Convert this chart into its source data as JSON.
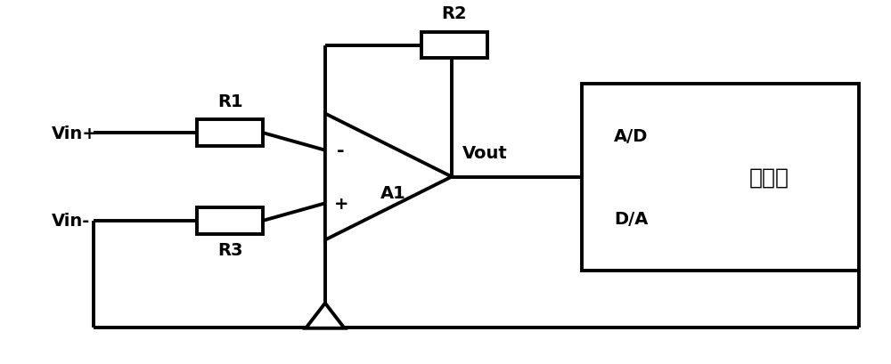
{
  "background_color": "#ffffff",
  "line_color": "#000000",
  "line_width": 2.8,
  "text_color": "#000000",
  "fig_width": 10.0,
  "fig_height": 4.1,
  "labels": {
    "vin_plus": "Vin+",
    "vin_minus": "Vin-",
    "r1": "R1",
    "r2": "R2",
    "r3": "R3",
    "a1": "A1",
    "vout": "Vout",
    "ad": "A/D",
    "da": "D/A",
    "controller": "控制器"
  },
  "font_size_labels": 14,
  "font_size_component": 14,
  "font_size_controller": 18,
  "font_size_ad": 14,
  "font_size_vout": 14
}
